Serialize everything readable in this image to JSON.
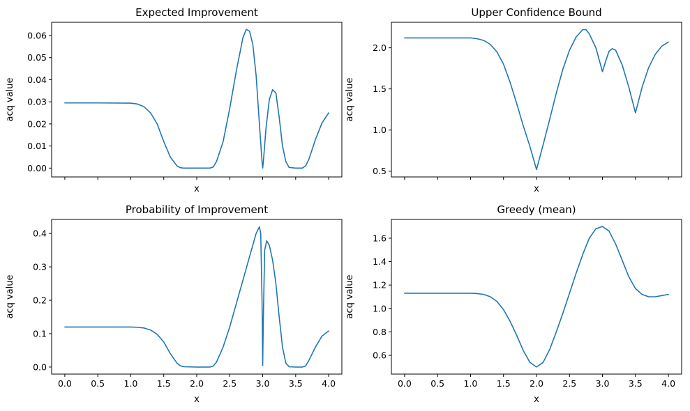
{
  "chart_data": [
    {
      "type": "line",
      "title": "Expected Improvement",
      "xlabel": "x",
      "ylabel": "acq value",
      "xlim": [
        -0.2,
        4.2
      ],
      "ylim": [
        -0.004,
        0.066
      ],
      "xticks": [
        0.0,
        0.5,
        1.0,
        1.5,
        2.0,
        2.5,
        3.0,
        3.5,
        4.0
      ],
      "xtick_labels_visible": false,
      "yticks": [
        0.0,
        0.01,
        0.02,
        0.03,
        0.04,
        0.05,
        0.06
      ],
      "ytick_labels": [
        "0.00",
        "0.01",
        "0.02",
        "0.03",
        "0.04",
        "0.05",
        "0.06"
      ],
      "series": [
        {
          "name": "Expected Improvement",
          "color": "#1f77b4",
          "x": [
            0.0,
            0.5,
            1.0,
            1.1,
            1.2,
            1.3,
            1.4,
            1.5,
            1.6,
            1.7,
            1.75,
            1.8,
            2.0,
            2.2,
            2.25,
            2.3,
            2.4,
            2.5,
            2.6,
            2.7,
            2.75,
            2.8,
            2.85,
            2.9,
            2.95,
            2.99,
            3.0,
            3.01,
            3.05,
            3.1,
            3.15,
            3.2,
            3.25,
            3.3,
            3.35,
            3.4,
            3.5,
            3.6,
            3.65,
            3.7,
            3.8,
            3.9,
            4.0
          ],
          "y": [
            0.0295,
            0.0295,
            0.0294,
            0.029,
            0.0278,
            0.025,
            0.02,
            0.012,
            0.005,
            0.001,
            0.0002,
            0.0,
            0.0,
            0.0,
            0.0005,
            0.003,
            0.012,
            0.027,
            0.044,
            0.059,
            0.0628,
            0.062,
            0.056,
            0.042,
            0.02,
            0.003,
            0.0,
            0.003,
            0.018,
            0.031,
            0.0355,
            0.034,
            0.023,
            0.01,
            0.003,
            0.0003,
            0.0,
            0.0,
            0.001,
            0.004,
            0.013,
            0.0205,
            0.025
          ]
        }
      ]
    },
    {
      "type": "line",
      "title": "Upper Confidence Bound",
      "xlabel": "x",
      "ylabel": "acq value",
      "xlim": [
        -0.2,
        4.2
      ],
      "ylim": [
        0.43,
        2.31
      ],
      "xticks": [
        0.0,
        0.5,
        1.0,
        1.5,
        2.0,
        2.5,
        3.0,
        3.5,
        4.0
      ],
      "xtick_labels_visible": false,
      "yticks": [
        0.5,
        1.0,
        1.5,
        2.0
      ],
      "ytick_labels": [
        "0.5",
        "1.0",
        "1.5",
        "2.0"
      ],
      "series": [
        {
          "name": "Upper Confidence Bound",
          "color": "#1f77b4",
          "x": [
            0.0,
            0.5,
            1.0,
            1.1,
            1.2,
            1.3,
            1.4,
            1.5,
            1.6,
            1.7,
            1.8,
            1.9,
            2.0,
            2.1,
            2.2,
            2.3,
            2.4,
            2.5,
            2.6,
            2.7,
            2.75,
            2.8,
            2.9,
            3.0,
            3.05,
            3.1,
            3.15,
            3.2,
            3.3,
            3.4,
            3.5,
            3.6,
            3.7,
            3.8,
            3.9,
            4.0
          ],
          "y": [
            2.12,
            2.12,
            2.12,
            2.11,
            2.09,
            2.04,
            1.95,
            1.8,
            1.58,
            1.32,
            1.05,
            0.8,
            0.52,
            0.82,
            1.13,
            1.45,
            1.74,
            1.97,
            2.13,
            2.22,
            2.22,
            2.17,
            2.0,
            1.71,
            1.84,
            1.96,
            1.99,
            1.97,
            1.79,
            1.52,
            1.21,
            1.52,
            1.76,
            1.92,
            2.02,
            2.07
          ]
        }
      ]
    },
    {
      "type": "line",
      "title": "Probability of Improvement",
      "xlabel": "x",
      "ylabel": "acq value",
      "xlim": [
        -0.2,
        4.2
      ],
      "ylim": [
        -0.021,
        0.442
      ],
      "xticks": [
        0.0,
        0.5,
        1.0,
        1.5,
        2.0,
        2.5,
        3.0,
        3.5,
        4.0
      ],
      "xtick_labels": [
        "0.0",
        "0.5",
        "1.0",
        "1.5",
        "2.0",
        "2.5",
        "3.0",
        "3.5",
        "4.0"
      ],
      "yticks": [
        0.0,
        0.1,
        0.2,
        0.3,
        0.4
      ],
      "ytick_labels": [
        "0.0",
        "0.1",
        "0.2",
        "0.3",
        "0.4"
      ],
      "series": [
        {
          "name": "Probability of Improvement",
          "color": "#1f77b4",
          "x": [
            0.0,
            0.5,
            1.0,
            1.1,
            1.2,
            1.3,
            1.4,
            1.5,
            1.6,
            1.7,
            1.75,
            1.8,
            2.0,
            2.2,
            2.25,
            2.3,
            2.4,
            2.5,
            2.6,
            2.7,
            2.8,
            2.9,
            2.95,
            2.97,
            2.99,
            3.0,
            3.01,
            3.03,
            3.06,
            3.1,
            3.15,
            3.2,
            3.25,
            3.3,
            3.35,
            3.4,
            3.5,
            3.6,
            3.65,
            3.7,
            3.8,
            3.9,
            4.0
          ],
          "y": [
            0.12,
            0.12,
            0.12,
            0.119,
            0.117,
            0.111,
            0.098,
            0.075,
            0.04,
            0.012,
            0.004,
            0.001,
            0.0,
            0.0,
            0.003,
            0.015,
            0.06,
            0.12,
            0.19,
            0.26,
            0.33,
            0.4,
            0.42,
            0.4,
            0.2,
            0.005,
            0.15,
            0.35,
            0.378,
            0.365,
            0.32,
            0.25,
            0.15,
            0.06,
            0.012,
            0.001,
            0.0,
            0.0,
            0.003,
            0.02,
            0.06,
            0.093,
            0.108
          ]
        }
      ]
    },
    {
      "type": "line",
      "title": "Greedy (mean)",
      "xlabel": "x",
      "ylabel": "acq value",
      "xlim": [
        -0.2,
        4.2
      ],
      "ylim": [
        0.44,
        1.76
      ],
      "xticks": [
        0.0,
        0.5,
        1.0,
        1.5,
        2.0,
        2.5,
        3.0,
        3.5,
        4.0
      ],
      "xtick_labels": [
        "0.0",
        "0.5",
        "1.0",
        "1.5",
        "2.0",
        "2.5",
        "3.0",
        "3.5",
        "4.0"
      ],
      "yticks": [
        0.6,
        0.8,
        1.0,
        1.2,
        1.4,
        1.6
      ],
      "ytick_labels": [
        "0.6",
        "0.8",
        "1.0",
        "1.2",
        "1.4",
        "1.6"
      ],
      "series": [
        {
          "name": "Greedy (mean)",
          "color": "#1f77b4",
          "x": [
            0.0,
            0.5,
            1.0,
            1.1,
            1.2,
            1.3,
            1.4,
            1.5,
            1.6,
            1.7,
            1.8,
            1.9,
            2.0,
            2.1,
            2.2,
            2.3,
            2.4,
            2.5,
            2.6,
            2.7,
            2.8,
            2.9,
            3.0,
            3.1,
            3.2,
            3.3,
            3.4,
            3.5,
            3.6,
            3.7,
            3.8,
            3.9,
            4.0
          ],
          "y": [
            1.13,
            1.13,
            1.13,
            1.127,
            1.12,
            1.1,
            1.06,
            0.99,
            0.89,
            0.77,
            0.64,
            0.54,
            0.5,
            0.54,
            0.65,
            0.8,
            0.96,
            1.13,
            1.3,
            1.46,
            1.6,
            1.68,
            1.7,
            1.66,
            1.55,
            1.41,
            1.27,
            1.17,
            1.12,
            1.1,
            1.1,
            1.11,
            1.12
          ]
        }
      ]
    }
  ]
}
